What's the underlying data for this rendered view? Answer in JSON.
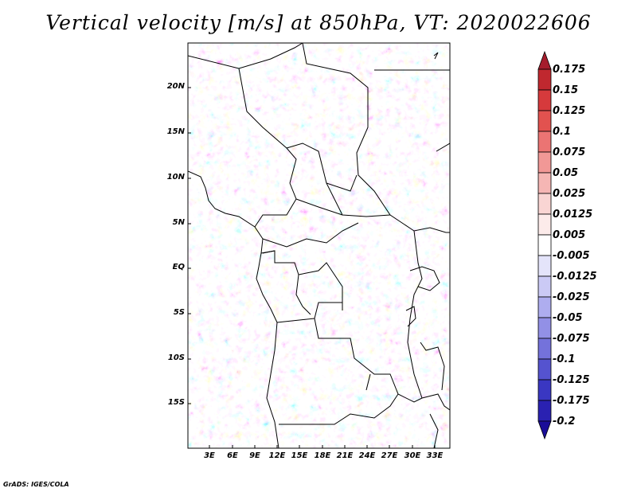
{
  "title": "Vertical velocity [m/s] at 850hPa, VT: 2020022606",
  "credit": "GrADS: IGES/COLA",
  "latitude_labels": [
    "20N",
    "15N",
    "10N",
    "5N",
    "EQ",
    "5S",
    "10S",
    "15S"
  ],
  "longitude_labels": [
    "3E",
    "6E",
    "9E",
    "12E",
    "15E",
    "18E",
    "21E",
    "24E",
    "27E",
    "30E",
    "33E"
  ],
  "colorbar": {
    "levels": [
      "0.175",
      "0.15",
      "0.125",
      "0.1",
      "0.075",
      "0.05",
      "0.025",
      "0.0125",
      "0.005",
      "-0.005",
      "-0.0125",
      "-0.025",
      "-0.05",
      "-0.075",
      "-0.1",
      "-0.125",
      "-0.175",
      "-0.2"
    ],
    "colors": [
      "#a51d2d",
      "#c0282f",
      "#d63a3c",
      "#e2524f",
      "#eb7473",
      "#f19896",
      "#f5b6b4",
      "#f9d5d3",
      "#fcebea",
      "#ffffff",
      "#e4e4fa",
      "#cbcaf5",
      "#aeadef",
      "#9290e6",
      "#7472db",
      "#5553cf",
      "#3a37c2",
      "#2a21b1",
      "#1a0d99"
    ]
  }
}
